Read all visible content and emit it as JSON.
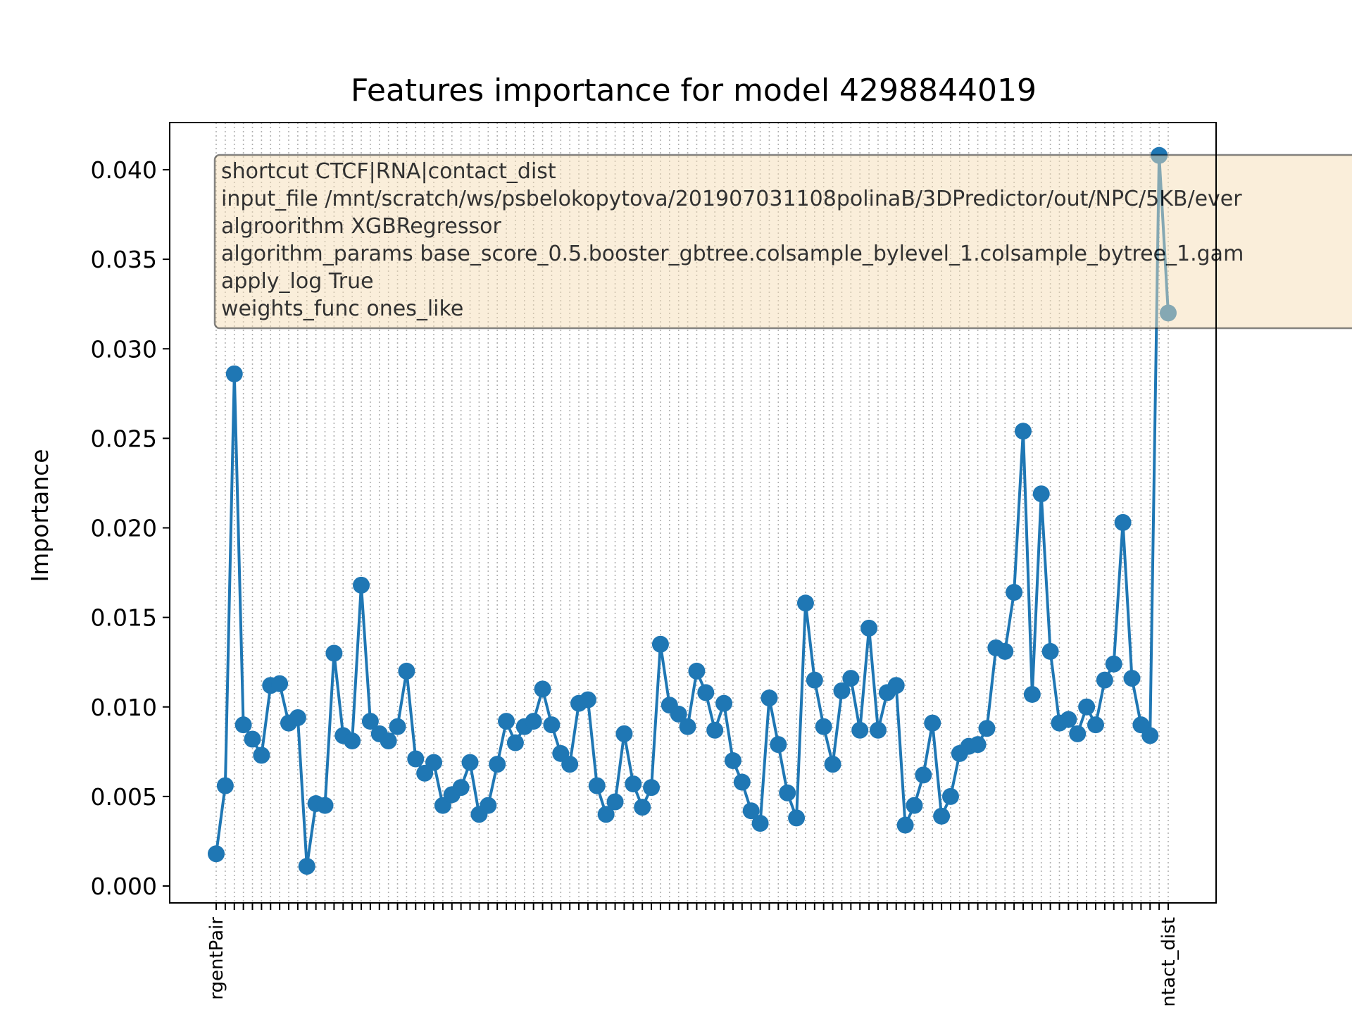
{
  "chart_data": {
    "type": "line",
    "title": "Features importance for model 4298844019",
    "xlabel": "",
    "ylabel": "Importance",
    "ylim": [
      -0.0009,
      0.0427
    ],
    "yticks": [
      "0.000",
      "0.005",
      "0.010",
      "0.015",
      "0.020",
      "0.025",
      "0.030",
      "0.035",
      "0.040"
    ],
    "grid": "vertical dotted lines at each feature",
    "series_color": "#1f77b4",
    "visible_x_tick_fragments": [
      "rgentPair",
      "ntact_dist"
    ],
    "values": [
      0.0018,
      0.0056,
      0.0286,
      0.009,
      0.0082,
      0.0073,
      0.0112,
      0.0113,
      0.0091,
      0.0094,
      0.0011,
      0.0046,
      0.0045,
      0.013,
      0.0084,
      0.0081,
      0.0168,
      0.0092,
      0.0085,
      0.0081,
      0.0089,
      0.012,
      0.0071,
      0.0063,
      0.0069,
      0.0045,
      0.0051,
      0.0055,
      0.0069,
      0.004,
      0.0045,
      0.0068,
      0.0092,
      0.008,
      0.0089,
      0.0092,
      0.011,
      0.009,
      0.0074,
      0.0068,
      0.0102,
      0.0104,
      0.0056,
      0.004,
      0.0047,
      0.0085,
      0.0057,
      0.0044,
      0.0055,
      0.0135,
      0.0101,
      0.0096,
      0.0089,
      0.012,
      0.0108,
      0.0087,
      0.0102,
      0.007,
      0.0058,
      0.0042,
      0.0035,
      0.0105,
      0.0079,
      0.0052,
      0.0038,
      0.0158,
      0.0115,
      0.0089,
      0.0068,
      0.0109,
      0.0116,
      0.0087,
      0.0144,
      0.0087,
      0.0108,
      0.0112,
      0.0034,
      0.0045,
      0.0062,
      0.0091,
      0.0039,
      0.005,
      0.0074,
      0.0078,
      0.0079,
      0.0088,
      0.0133,
      0.0131,
      0.0164,
      0.0254,
      0.0107,
      0.0219,
      0.0131,
      0.0091,
      0.0093,
      0.0085,
      0.01,
      0.009,
      0.0115,
      0.0124,
      0.0203,
      0.0116,
      0.009,
      0.0084,
      0.0408,
      0.032
    ],
    "legend_box": {
      "lines": [
        "shortcut CTCF|RNA|contact_dist",
        "input_file /mnt/scratch/ws/psbelokopytova/201907031108polinaB/3DPredictor/out/NPC/5KB/ever",
        "algroorithm XGBRegressor",
        "algorithm_params base_score_0.5.booster_gbtree.colsample_bylevel_1.colsample_bytree_1.gam",
        "apply_log True",
        "weights_func ones_like"
      ],
      "placement": "upper-left, extends past right edge",
      "face_color": "#f5deb3"
    }
  }
}
